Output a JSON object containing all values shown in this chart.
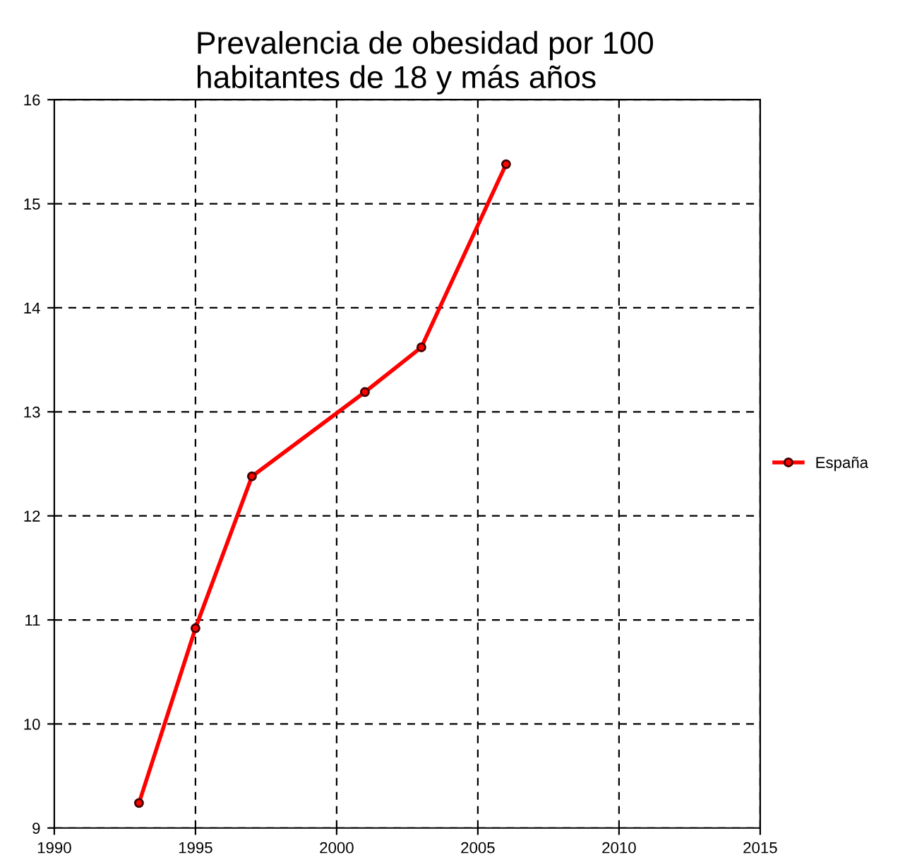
{
  "chart_data": {
    "type": "line",
    "title": "Prevalencia de obesidad por 100\nhabitantes de 18 y más años",
    "x": [
      1993,
      1995,
      1997,
      2001,
      2003,
      2006
    ],
    "series": [
      {
        "name": "España",
        "color": "#ff0000",
        "values": [
          9.24,
          10.92,
          12.38,
          13.19,
          13.62,
          15.38
        ]
      }
    ],
    "xlim": [
      1990,
      2015
    ],
    "xticks": [
      1990,
      1995,
      2000,
      2005,
      2010,
      2015
    ],
    "ylim": [
      9,
      16
    ],
    "yticks": [
      9,
      10,
      11,
      12,
      13,
      14,
      15,
      16
    ],
    "grid": true,
    "legend": "right",
    "marker": "circle",
    "line_style": "solid"
  }
}
